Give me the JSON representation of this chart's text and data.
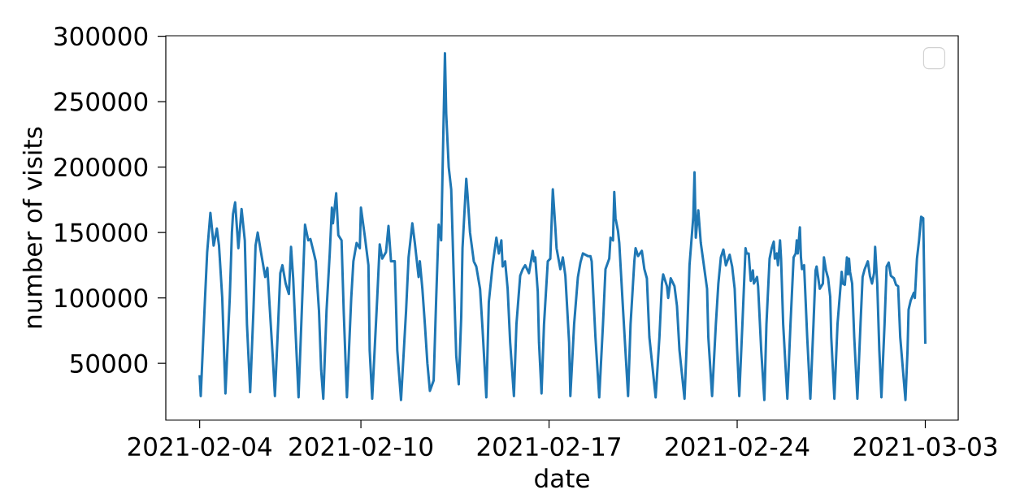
{
  "chart_data": {
    "type": "line",
    "xlabel": "date",
    "ylabel": "number of visits",
    "xlim": [
      "2021-02-02T17:46",
      "2021-03-04T05:24"
    ],
    "ylim": [
      6650,
      300350
    ],
    "xticks": [
      "2021-02-04",
      "2021-02-10",
      "2021-02-17",
      "2021-02-24",
      "2021-03-03"
    ],
    "yticks": [
      50000,
      100000,
      150000,
      200000,
      250000,
      300000
    ],
    "x": [
      "2021-02-04T00:00",
      "2021-02-04T00:58",
      "2021-02-04T04:48",
      "2021-02-04T06:43",
      "2021-02-04T09:36",
      "2021-02-04T12:29",
      "2021-02-04T15:22",
      "2021-02-04T17:17",
      "2021-02-04T20:10",
      "2021-02-04T23:02",
      "2021-02-05T02:53",
      "2021-02-05T04:48",
      "2021-02-05T05:46",
      "2021-02-05T07:41",
      "2021-02-05T10:34",
      "2021-02-05T13:26",
      "2021-02-05T16:19",
      "2021-02-05T18:14",
      "2021-02-05T21:07",
      "2021-02-06T00:00",
      "2021-02-06T01:55",
      "2021-02-06T03:50",
      "2021-02-06T06:43",
      "2021-02-06T10:34",
      "2021-02-06T12:29",
      "2021-02-06T14:24",
      "2021-02-06T17:17",
      "2021-02-06T19:12",
      "2021-02-06T22:05",
      "2021-02-07T00:00",
      "2021-02-07T01:55",
      "2021-02-07T04:48",
      "2021-02-07T07:41",
      "2021-02-07T09:36",
      "2021-02-07T11:31",
      "2021-02-07T14:24",
      "2021-02-07T16:19",
      "2021-02-07T19:12",
      "2021-02-07T22:05",
      "2021-02-08T00:58",
      "2021-02-08T02:53",
      "2021-02-08T05:46",
      "2021-02-08T07:41",
      "2021-02-08T10:34",
      "2021-02-08T12:29",
      "2021-02-08T14:24",
      "2021-02-08T17:17",
      "2021-02-08T20:10",
      "2021-02-08T22:05",
      "2021-02-08T23:02",
      "2021-02-09T01:55",
      "2021-02-09T03:50",
      "2021-02-09T06:43",
      "2021-02-09T08:38",
      "2021-02-09T10:34",
      "2021-02-09T11:31",
      "2021-02-09T15:22",
      "2021-02-09T17:17",
      "2021-02-09T20:10",
      "2021-02-09T23:02",
      "2021-02-10T00:00",
      "2021-02-10T03:22",
      "2021-02-10T06:43",
      "2021-02-10T07:50",
      "2021-02-10T10:05",
      "2021-02-10T14:34",
      "2021-02-10T16:48",
      "2021-02-10T19:02",
      "2021-02-10T22:24",
      "2021-02-11T00:38",
      "2021-02-11T02:53",
      "2021-02-11T06:14",
      "2021-02-11T08:29",
      "2021-02-11T11:50",
      "2021-02-11T16:19",
      "2021-02-11T18:34",
      "2021-02-11T21:55",
      "2021-02-12T00:10",
      "2021-02-12T03:31",
      "2021-02-12T04:38",
      "2021-02-12T06:53",
      "2021-02-12T09:07",
      "2021-02-12T11:22",
      "2021-02-12T13:36",
      "2021-02-12T16:58",
      "2021-02-12T19:12",
      "2021-02-12T21:26",
      "2021-02-12T23:41",
      "2021-02-13T03:02",
      "2021-02-13T04:10",
      "2021-02-13T06:24",
      "2021-02-13T08:38",
      "2021-02-13T10:53",
      "2021-02-13T13:07",
      "2021-02-13T15:22",
      "2021-02-13T17:36",
      "2021-02-13T18:43",
      "2021-02-13T22:05",
      "2021-02-13T23:12",
      "2021-02-14T01:26",
      "2021-02-14T04:48",
      "2021-02-14T07:02",
      "2021-02-14T10:24",
      "2021-02-14T12:38",
      "2021-02-14T16:00",
      "2021-02-14T18:14",
      "2021-02-14T21:36",
      "2021-02-15T00:58",
      "2021-02-15T03:12",
      "2021-02-15T05:26",
      "2021-02-15T06:34",
      "2021-02-15T08:48",
      "2021-02-15T11:02",
      "2021-02-15T13:17",
      "2021-02-15T16:38",
      "2021-02-15T18:53",
      "2021-02-15T22:14",
      "2021-02-16T00:29",
      "2021-02-16T02:43",
      "2021-02-16T06:05",
      "2021-02-16T09:26",
      "2021-02-16T10:34",
      "2021-02-16T11:41",
      "2021-02-16T13:55",
      "2021-02-16T15:02",
      "2021-02-16T17:17",
      "2021-02-16T19:31",
      "2021-02-16T22:53",
      "2021-02-17T01:07",
      "2021-02-17T03:22",
      "2021-02-17T05:36",
      "2021-02-17T06:43",
      "2021-02-17T10:05",
      "2021-02-17T12:19",
      "2021-02-17T14:34",
      "2021-02-17T17:55",
      "2021-02-17T19:02",
      "2021-02-17T22:24",
      "2021-02-18T01:46",
      "2021-02-18T04:00",
      "2021-02-18T06:14",
      "2021-02-18T10:43",
      "2021-02-18T12:58",
      "2021-02-18T14:05",
      "2021-02-18T17:26",
      "2021-02-18T20:48",
      "2021-02-19T00:10",
      "2021-02-19T02:24",
      "2021-02-19T05:46",
      "2021-02-19T06:53",
      "2021-02-19T09:07",
      "2021-02-19T10:14",
      "2021-02-19T11:22",
      "2021-02-19T13:36",
      "2021-02-19T14:43",
      "2021-02-19T18:05",
      "2021-02-19T22:34",
      "2021-02-20T00:48",
      "2021-02-20T04:10",
      "2021-02-20T05:17",
      "2021-02-20T07:31",
      "2021-02-20T10:53",
      "2021-02-20T13:07",
      "2021-02-20T15:22",
      "2021-02-20T17:36",
      "2021-02-20T23:12",
      "2021-02-21T02:34",
      "2021-02-21T04:48",
      "2021-02-21T05:55",
      "2021-02-21T09:17",
      "2021-02-21T10:24",
      "2021-02-21T12:38",
      "2021-02-21T16:00",
      "2021-02-21T18:14",
      "2021-02-21T20:29",
      "2021-02-22T00:58",
      "2021-02-22T03:12",
      "2021-02-22T05:26",
      "2021-02-22T08:48",
      "2021-02-22T09:55",
      "2021-02-22T11:02",
      "2021-02-22T13:17",
      "2021-02-22T15:31",
      "2021-02-22T17:46",
      "2021-02-22T21:07",
      "2021-02-22T22:14",
      "2021-02-23T01:36",
      "2021-02-23T04:58",
      "2021-02-23T07:12",
      "2021-02-23T09:26",
      "2021-02-23T11:41",
      "2021-02-23T13:55",
      "2021-02-23T17:17",
      "2021-02-23T19:31",
      "2021-02-23T21:46",
      "2021-02-24T00:00",
      "2021-02-24T01:52",
      "2021-02-24T04:40",
      "2021-02-24T07:28",
      "2021-02-24T08:24",
      "2021-02-24T10:16",
      "2021-02-24T12:08",
      "2021-02-24T14:00",
      "2021-02-24T14:56",
      "2021-02-24T17:44",
      "2021-02-24T18:40",
      "2021-02-24T21:28",
      "2021-02-25T00:16",
      "2021-02-25T02:08",
      "2021-02-25T04:56",
      "2021-02-25T06:48",
      "2021-02-25T08:40",
      "2021-02-25T09:36",
      "2021-02-25T11:28",
      "2021-02-25T12:24",
      "2021-02-25T14:16",
      "2021-02-25T15:12",
      "2021-02-25T17:04",
      "2021-02-25T20:48",
      "2021-02-25T23:36",
      "2021-02-26T02:24",
      "2021-02-26T04:16",
      "2021-02-26T05:12",
      "2021-02-26T06:08",
      "2021-02-26T08:00",
      "2021-02-26T08:56",
      "2021-02-26T09:52",
      "2021-02-26T11:44",
      "2021-02-26T12:40",
      "2021-02-26T14:32",
      "2021-02-26T17:20",
      "2021-02-26T20:08",
      "2021-02-26T22:00",
      "2021-02-26T22:56",
      "2021-02-27T01:44",
      "2021-02-27T04:32",
      "2021-02-27T05:28",
      "2021-02-27T07:20",
      "2021-02-27T09:12",
      "2021-02-27T11:04",
      "2021-02-27T12:00",
      "2021-02-27T14:48",
      "2021-02-27T17:36",
      "2021-02-27T21:20",
      "2021-02-27T22:16",
      "2021-02-28T00:08",
      "2021-02-28T02:00",
      "2021-02-28T02:56",
      "2021-02-28T03:52",
      "2021-02-28T04:48",
      "2021-02-28T06:40",
      "2021-02-28T08:32",
      "2021-02-28T11:20",
      "2021-02-28T14:08",
      "2021-02-28T16:00",
      "2021-02-28T17:52",
      "2021-02-28T20:40",
      "2021-02-28T22:32",
      "2021-03-01T00:24",
      "2021-03-01T02:16",
      "2021-03-01T03:12",
      "2021-03-01T05:04",
      "2021-03-01T06:56",
      "2021-03-01T08:48",
      "2021-03-01T11:36",
      "2021-03-01T13:28",
      "2021-03-01T15:20",
      "2021-03-01T17:12",
      "2021-03-01T20:00",
      "2021-03-01T21:52",
      "2021-03-01T23:44",
      "2021-03-02T01:36",
      "2021-03-02T06:16",
      "2021-03-02T08:08",
      "2021-03-02T09:04",
      "2021-03-02T10:56",
      "2021-03-02T13:44",
      "2021-03-02T14:40",
      "2021-03-02T16:32",
      "2021-03-02T18:24",
      "2021-03-02T20:16",
      "2021-03-02T22:08",
      "2021-03-03T00:00"
    ],
    "series": [
      {
        "color": "#1f77b4",
        "values": [
          41000,
          25000,
          100000,
          135000,
          165000,
          140000,
          153000,
          140000,
          100000,
          27000,
          100000,
          150000,
          164000,
          173000,
          138000,
          168000,
          144000,
          80000,
          28000,
          90000,
          140000,
          150000,
          135000,
          116000,
          123000,
          95000,
          55000,
          25000,
          80000,
          119000,
          125000,
          111000,
          103000,
          139000,
          115000,
          60000,
          24000,
          90000,
          156000,
          144000,
          145000,
          135000,
          128000,
          90000,
          45000,
          23000,
          90000,
          134000,
          169000,
          157000,
          180000,
          148000,
          144000,
          90000,
          45000,
          24000,
          100000,
          128000,
          142000,
          138000,
          169000,
          148000,
          125000,
          60000,
          23000,
          100000,
          141000,
          130000,
          135000,
          155000,
          128000,
          128000,
          60000,
          22000,
          90000,
          131000,
          157000,
          142000,
          116000,
          128000,
          107000,
          80000,
          50000,
          29000,
          37000,
          99000,
          156000,
          144000,
          287000,
          241000,
          200000,
          183000,
          117000,
          56000,
          34000,
          86000,
          138000,
          191000,
          179000,
          150000,
          128000,
          124000,
          107000,
          76000,
          24000,
          97000,
          125000,
          146000,
          134000,
          144000,
          124000,
          128000,
          107000,
          66000,
          25000,
          80000,
          117000,
          122000,
          125000,
          119000,
          136000,
          128000,
          131000,
          105000,
          66000,
          27000,
          80000,
          128000,
          130000,
          183000,
          154000,
          138000,
          122000,
          131000,
          117000,
          66000,
          25000,
          80000,
          116000,
          127000,
          134000,
          132000,
          132000,
          128000,
          70000,
          24000,
          80000,
          122000,
          130000,
          146000,
          144000,
          181000,
          161000,
          151000,
          142000,
          91000,
          25000,
          80000,
          128000,
          138000,
          132000,
          136000,
          122000,
          115000,
          70000,
          24000,
          70000,
          111000,
          118000,
          109000,
          100000,
          115000,
          109000,
          94000,
          60000,
          23000,
          70000,
          125000,
          162000,
          196000,
          146000,
          167000,
          142000,
          128000,
          107000,
          70000,
          25000,
          80000,
          111000,
          131000,
          137000,
          125000,
          133000,
          124000,
          107000,
          60000,
          25000,
          80000,
          138000,
          134000,
          134000,
          113000,
          121000,
          111000,
          116000,
          109000,
          60000,
          22000,
          80000,
          130000,
          138000,
          143000,
          130000,
          134000,
          125000,
          144000,
          130000,
          80000,
          23000,
          80000,
          131000,
          134000,
          144000,
          134000,
          154000,
          131000,
          122000,
          125000,
          107000,
          70000,
          23000,
          80000,
          121000,
          124000,
          107000,
          111000,
          131000,
          121000,
          115000,
          101000,
          70000,
          23000,
          80000,
          120000,
          111000,
          110000,
          131000,
          118000,
          130000,
          120000,
          111000,
          70000,
          23000,
          80000,
          116000,
          122000,
          128000,
          117000,
          111000,
          119000,
          139000,
          111000,
          60000,
          24000,
          80000,
          124000,
          127000,
          117000,
          115000,
          110000,
          109000,
          70000,
          22000,
          60000,
          91000,
          98000,
          104000,
          100000,
          130000,
          144000,
          162000,
          161000,
          65000
        ]
      }
    ]
  }
}
